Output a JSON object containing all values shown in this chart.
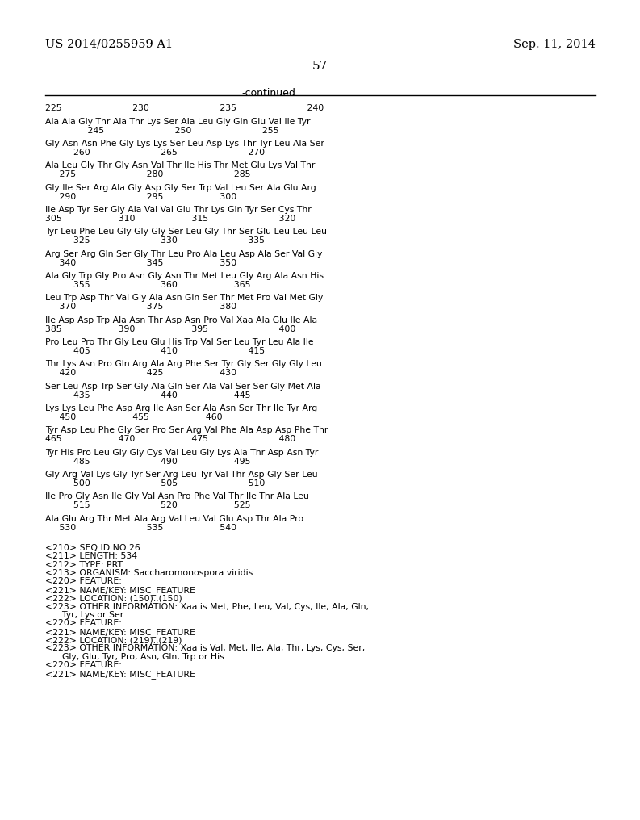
{
  "background_color": "#ffffff",
  "header_left": "US 2014/0255959 A1",
  "header_right": "Sep. 11, 2014",
  "page_number": "57",
  "continued_text": "-continued",
  "monospace_font": "Courier New",
  "serif_font": "DejaVu Serif",
  "content_lines": [
    {
      "type": "number_row",
      "text": "225                         230                         235                         240"
    },
    {
      "type": "blank"
    },
    {
      "type": "sequence",
      "text": "Ala Ala Gly Thr Ala Thr Lys Ser Ala Leu Gly Gln Glu Val Ile Tyr"
    },
    {
      "type": "number_row",
      "text": "               245                         250                         255"
    },
    {
      "type": "blank"
    },
    {
      "type": "sequence",
      "text": "Gly Asn Asn Phe Gly Lys Lys Ser Leu Asp Lys Thr Tyr Leu Ala Ser"
    },
    {
      "type": "number_row",
      "text": "          260                         265                         270"
    },
    {
      "type": "blank"
    },
    {
      "type": "sequence",
      "text": "Ala Leu Gly Thr Gly Asn Val Thr Ile His Thr Met Glu Lys Val Thr"
    },
    {
      "type": "number_row",
      "text": "     275                         280                         285"
    },
    {
      "type": "blank"
    },
    {
      "type": "sequence",
      "text": "Gly Ile Ser Arg Ala Gly Asp Gly Ser Trp Val Leu Ser Ala Glu Arg"
    },
    {
      "type": "number_row",
      "text": "     290                         295                    300"
    },
    {
      "type": "blank"
    },
    {
      "type": "sequence",
      "text": "Ile Asp Tyr Ser Gly Ala Val Val Glu Thr Lys Gln Tyr Ser Cys Thr"
    },
    {
      "type": "number_row",
      "text": "305                    310                    315                         320"
    },
    {
      "type": "blank"
    },
    {
      "type": "sequence",
      "text": "Tyr Leu Phe Leu Gly Gly Gly Ser Leu Gly Thr Ser Glu Leu Leu Leu"
    },
    {
      "type": "number_row",
      "text": "          325                         330                         335"
    },
    {
      "type": "blank"
    },
    {
      "type": "sequence",
      "text": "Arg Ser Arg Gln Ser Gly Thr Leu Pro Ala Leu Asp Ala Ser Val Gly"
    },
    {
      "type": "number_row",
      "text": "     340                         345                    350"
    },
    {
      "type": "blank"
    },
    {
      "type": "sequence",
      "text": "Ala Gly Trp Gly Pro Asn Gly Asn Thr Met Leu Gly Arg Ala Asn His"
    },
    {
      "type": "number_row",
      "text": "          355                         360                    365"
    },
    {
      "type": "blank"
    },
    {
      "type": "sequence",
      "text": "Leu Trp Asp Thr Val Gly Ala Asn Gln Ser Thr Met Pro Val Met Gly"
    },
    {
      "type": "number_row",
      "text": "     370                         375                    380"
    },
    {
      "type": "blank"
    },
    {
      "type": "sequence",
      "text": "Ile Asp Asp Trp Ala Asn Thr Asp Asn Pro Val Xaa Ala Glu Ile Ala"
    },
    {
      "type": "number_row",
      "text": "385                    390                    395                         400"
    },
    {
      "type": "blank"
    },
    {
      "type": "sequence",
      "text": "Pro Leu Pro Thr Gly Leu Glu His Trp Val Ser Leu Tyr Leu Ala Ile"
    },
    {
      "type": "number_row",
      "text": "          405                         410                         415"
    },
    {
      "type": "blank"
    },
    {
      "type": "sequence",
      "text": "Thr Lys Asn Pro Gln Arg Ala Arg Phe Ser Tyr Gly Ser Gly Gly Leu"
    },
    {
      "type": "number_row",
      "text": "     420                         425                    430"
    },
    {
      "type": "blank"
    },
    {
      "type": "sequence",
      "text": "Ser Leu Asp Trp Ser Gly Ala Gln Ser Ala Val Ser Ser Gly Met Ala"
    },
    {
      "type": "number_row",
      "text": "          435                         440                    445"
    },
    {
      "type": "blank"
    },
    {
      "type": "sequence",
      "text": "Lys Lys Leu Phe Asp Arg Ile Asn Ser Ala Asn Ser Thr Ile Tyr Arg"
    },
    {
      "type": "number_row",
      "text": "     450                    455                    460"
    },
    {
      "type": "blank"
    },
    {
      "type": "sequence",
      "text": "Tyr Asp Leu Phe Gly Ser Pro Ser Arg Val Phe Ala Asp Asp Phe Thr"
    },
    {
      "type": "number_row",
      "text": "465                    470                    475                         480"
    },
    {
      "type": "blank"
    },
    {
      "type": "sequence",
      "text": "Tyr His Pro Leu Gly Gly Cys Val Leu Gly Lys Ala Thr Asp Asn Tyr"
    },
    {
      "type": "number_row",
      "text": "          485                         490                    495"
    },
    {
      "type": "blank"
    },
    {
      "type": "sequence",
      "text": "Gly Arg Val Lys Gly Tyr Ser Arg Leu Tyr Val Thr Asp Gly Ser Leu"
    },
    {
      "type": "number_row",
      "text": "          500                         505                         510"
    },
    {
      "type": "blank"
    },
    {
      "type": "sequence",
      "text": "Ile Pro Gly Asn Ile Gly Val Asn Pro Phe Val Thr Ile Thr Ala Leu"
    },
    {
      "type": "number_row",
      "text": "          515                         520                    525"
    },
    {
      "type": "blank"
    },
    {
      "type": "sequence",
      "text": "Ala Glu Arg Thr Met Ala Arg Val Leu Val Glu Asp Thr Ala Pro"
    },
    {
      "type": "number_row",
      "text": "     530                         535                    540"
    }
  ],
  "metadata_lines": [
    "<210> SEQ ID NO 26",
    "<211> LENGTH: 534",
    "<212> TYPE: PRT",
    "<213> ORGANISM: Saccharomonospora viridis",
    "<220> FEATURE:",
    "<221> NAME/KEY: MISC_FEATURE",
    "<222> LOCATION: (150)..(150)",
    "<223> OTHER INFORMATION: Xaa is Met, Phe, Leu, Val, Cys, Ile, Ala, Gln,",
    "      Tyr, Lys or Ser",
    "<220> FEATURE:",
    "<221> NAME/KEY: MISC_FEATURE",
    "<222> LOCATION: (219)..(219)",
    "<223> OTHER INFORMATION: Xaa is Val, Met, Ile, Ala, Thr, Lys, Cys, Ser,",
    "      Gly, Glu, Tyr, Pro, Asn, Gln, Trp or His",
    "<220> FEATURE:",
    "<221> NAME/KEY: MISC_FEATURE"
  ]
}
